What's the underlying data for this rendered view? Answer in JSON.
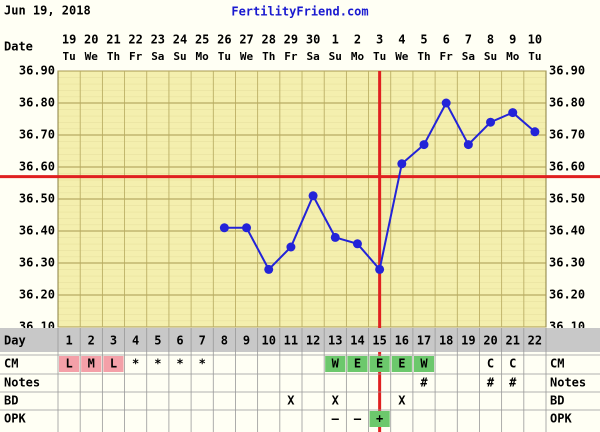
{
  "header": {
    "date": "Jun 19, 2018",
    "site": "FertilityFriend.com"
  },
  "chart_data": {
    "type": "line",
    "date_label": "Date",
    "dates": [
      "19",
      "20",
      "21",
      "22",
      "23",
      "24",
      "25",
      "26",
      "27",
      "28",
      "29",
      "30",
      "1",
      "2",
      "3",
      "4",
      "5",
      "6",
      "7",
      "8",
      "9",
      "10"
    ],
    "weekdays": [
      "Tu",
      "We",
      "Th",
      "Fr",
      "Sa",
      "Su",
      "Mo",
      "Tu",
      "We",
      "Th",
      "Fr",
      "Sa",
      "Su",
      "Mo",
      "Tu",
      "We",
      "Th",
      "Fr",
      "Sa",
      "Su",
      "Mo",
      "Tu"
    ],
    "day_label": "Day",
    "cycle_days": [
      1,
      2,
      3,
      4,
      5,
      6,
      7,
      8,
      9,
      10,
      11,
      12,
      13,
      14,
      15,
      16,
      17,
      18,
      19,
      20,
      21,
      22
    ],
    "series": [
      {
        "name": "Temperature",
        "color": "#2323d8",
        "values": [
          null,
          null,
          null,
          null,
          null,
          null,
          null,
          36.41,
          36.41,
          36.28,
          36.35,
          36.51,
          36.38,
          36.36,
          36.28,
          36.61,
          36.67,
          36.8,
          36.67,
          36.74,
          36.77,
          36.71
        ]
      }
    ],
    "ylim": [
      36.1,
      36.9
    ],
    "yticks": [
      {
        "value": 36.1,
        "label": "36.10"
      },
      {
        "value": 36.2,
        "label": "36.20"
      },
      {
        "value": 36.3,
        "label": "36.30"
      },
      {
        "value": 36.4,
        "label": "36.40"
      },
      {
        "value": 36.5,
        "label": "36.50"
      },
      {
        "value": 36.6,
        "label": "36.60"
      },
      {
        "value": 36.7,
        "label": "36.70"
      },
      {
        "value": 36.8,
        "label": "36.80"
      },
      {
        "value": 36.9,
        "label": "36.90"
      }
    ],
    "grid": true,
    "coverline": 36.57,
    "coverline_color": "#e02020",
    "ovulation_day": 15,
    "rows": [
      {
        "label": "CM",
        "cells": [
          {
            "text": "L",
            "color": "#f4a0a8"
          },
          {
            "text": "M",
            "color": "#f4a0a8"
          },
          {
            "text": "L",
            "color": "#f4a0a8"
          },
          {
            "text": "*"
          },
          {
            "text": "*"
          },
          {
            "text": "*"
          },
          {
            "text": "*"
          },
          null,
          null,
          null,
          null,
          null,
          {
            "text": "W",
            "color": "#6cc86c"
          },
          {
            "text": "E",
            "color": "#6cc86c"
          },
          {
            "text": "E",
            "color": "#6cc86c"
          },
          {
            "text": "E",
            "color": "#6cc86c"
          },
          {
            "text": "W",
            "color": "#6cc86c"
          },
          null,
          null,
          {
            "text": "C"
          },
          {
            "text": "C"
          },
          null
        ]
      },
      {
        "label": "Notes",
        "cells": [
          null,
          null,
          null,
          null,
          null,
          null,
          null,
          null,
          null,
          null,
          null,
          null,
          null,
          null,
          null,
          null,
          {
            "text": "#"
          },
          null,
          null,
          {
            "text": "#"
          },
          {
            "text": "#"
          },
          null
        ]
      },
      {
        "label": "BD",
        "cells": [
          null,
          null,
          null,
          null,
          null,
          null,
          null,
          null,
          null,
          null,
          {
            "text": "X"
          },
          null,
          {
            "text": "X"
          },
          null,
          null,
          {
            "text": "X"
          },
          null,
          null,
          null,
          null,
          null,
          null
        ]
      },
      {
        "label": "OPK",
        "cells": [
          null,
          null,
          null,
          null,
          null,
          null,
          null,
          null,
          null,
          null,
          null,
          null,
          {
            "text": "–"
          },
          {
            "text": "–"
          },
          {
            "text": "+",
            "color": "#6cc86c"
          },
          null,
          null,
          null,
          null,
          null,
          null,
          null
        ]
      }
    ]
  }
}
